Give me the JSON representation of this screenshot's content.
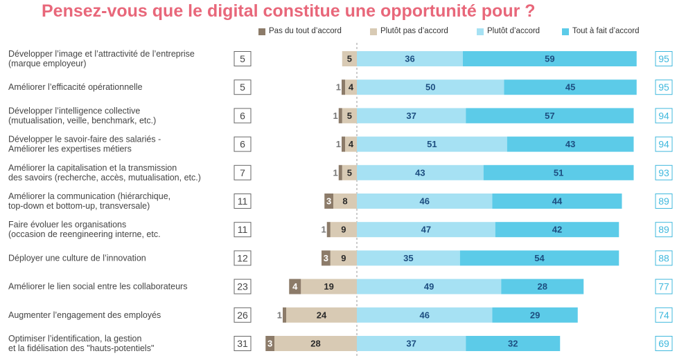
{
  "title": "Pensez-vous que le digital constitue une opportunité pour ?",
  "chart_data": {
    "type": "bar",
    "stacked": true,
    "diverging": true,
    "title": "Pensez-vous que le digital constitue une opportunité pour ?",
    "colors": {
      "pas_du_tout": "#8c7b69",
      "plutot_pas": "#d8cab4",
      "plutot": "#a6e1f3",
      "tout_a_fait": "#5ccbe8",
      "neg_box": "#555555",
      "pos_box": "#3fb8dd",
      "pos_text": "#1d4e80",
      "neg_text": "#2a2a2a"
    },
    "legend": [
      {
        "key": "pas_du_tout",
        "label": "Pas du tout d’accord"
      },
      {
        "key": "plutot_pas",
        "label": "Plutôt pas d’accord"
      },
      {
        "key": "plutot",
        "label": "Plutôt d’accord"
      },
      {
        "key": "tout_a_fait",
        "label": "Tout à fait d’accord"
      }
    ],
    "legend_position": "top-right",
    "rows": [
      {
        "label": [
          "Développer l’image et l’attractivité de l’entreprise",
          "(marque employeur)"
        ],
        "neg_total": 5,
        "pas_du_tout": 0,
        "plutot_pas": 5,
        "plutot": 36,
        "tout_a_fait": 59,
        "pos_total": 95
      },
      {
        "label": [
          "Améliorer l’efficacité opérationnelle"
        ],
        "neg_total": 5,
        "pas_du_tout": 1,
        "plutot_pas": 4,
        "plutot": 50,
        "tout_a_fait": 45,
        "pos_total": 95
      },
      {
        "label": [
          "Développer l’intelligence collective",
          "(mutualisation, veille, benchmark, etc.)"
        ],
        "neg_total": 6,
        "pas_du_tout": 1,
        "plutot_pas": 5,
        "plutot": 37,
        "tout_a_fait": 57,
        "pos_total": 94
      },
      {
        "label": [
          "Développer le savoir-faire des salariés -",
          "Améliorer les expertises métiers"
        ],
        "neg_total": 6,
        "pas_du_tout": 1,
        "plutot_pas": 4,
        "plutot": 51,
        "tout_a_fait": 43,
        "pos_total": 94
      },
      {
        "label": [
          "Améliorer la capitalisation et la transmission",
          "des savoirs (recherche, accès, mutualisation, etc.)"
        ],
        "neg_total": 7,
        "pas_du_tout": 1,
        "plutot_pas": 5,
        "plutot": 43,
        "tout_a_fait": 51,
        "pos_total": 93
      },
      {
        "label": [
          "Améliorer la communication (hiérarchique,",
          "top-down et bottom-up, transversale)"
        ],
        "neg_total": 11,
        "pas_du_tout": 3,
        "plutot_pas": 8,
        "plutot": 46,
        "tout_a_fait": 44,
        "pos_total": 89
      },
      {
        "label": [
          "Faire évoluer les organisations",
          "(occasion de reengineering interne, etc."
        ],
        "neg_total": 11,
        "pas_du_tout": 1,
        "plutot_pas": 9,
        "plutot": 47,
        "tout_a_fait": 42,
        "pos_total": 89
      },
      {
        "label": [
          "Déployer une culture de l’innovation"
        ],
        "neg_total": 12,
        "pas_du_tout": 3,
        "plutot_pas": 9,
        "plutot": 35,
        "tout_a_fait": 54,
        "pos_total": 88
      },
      {
        "label": [
          "Améliorer le lien social entre les collaborateurs"
        ],
        "neg_total": 23,
        "pas_du_tout": 4,
        "plutot_pas": 19,
        "plutot": 49,
        "tout_a_fait": 28,
        "pos_total": 77
      },
      {
        "label": [
          "Augmenter l’engagement des employés"
        ],
        "neg_total": 26,
        "pas_du_tout": 1,
        "plutot_pas": 24,
        "plutot": 46,
        "tout_a_fait": 29,
        "pos_total": 74
      },
      {
        "label": [
          "Optimiser l’identification, la gestion",
          "et la fidélisation des \"hauts-potentiels\""
        ],
        "neg_total": 31,
        "pas_du_tout": 3,
        "plutot_pas": 28,
        "plutot": 37,
        "tout_a_fait": 32,
        "pos_total": 69
      }
    ]
  }
}
